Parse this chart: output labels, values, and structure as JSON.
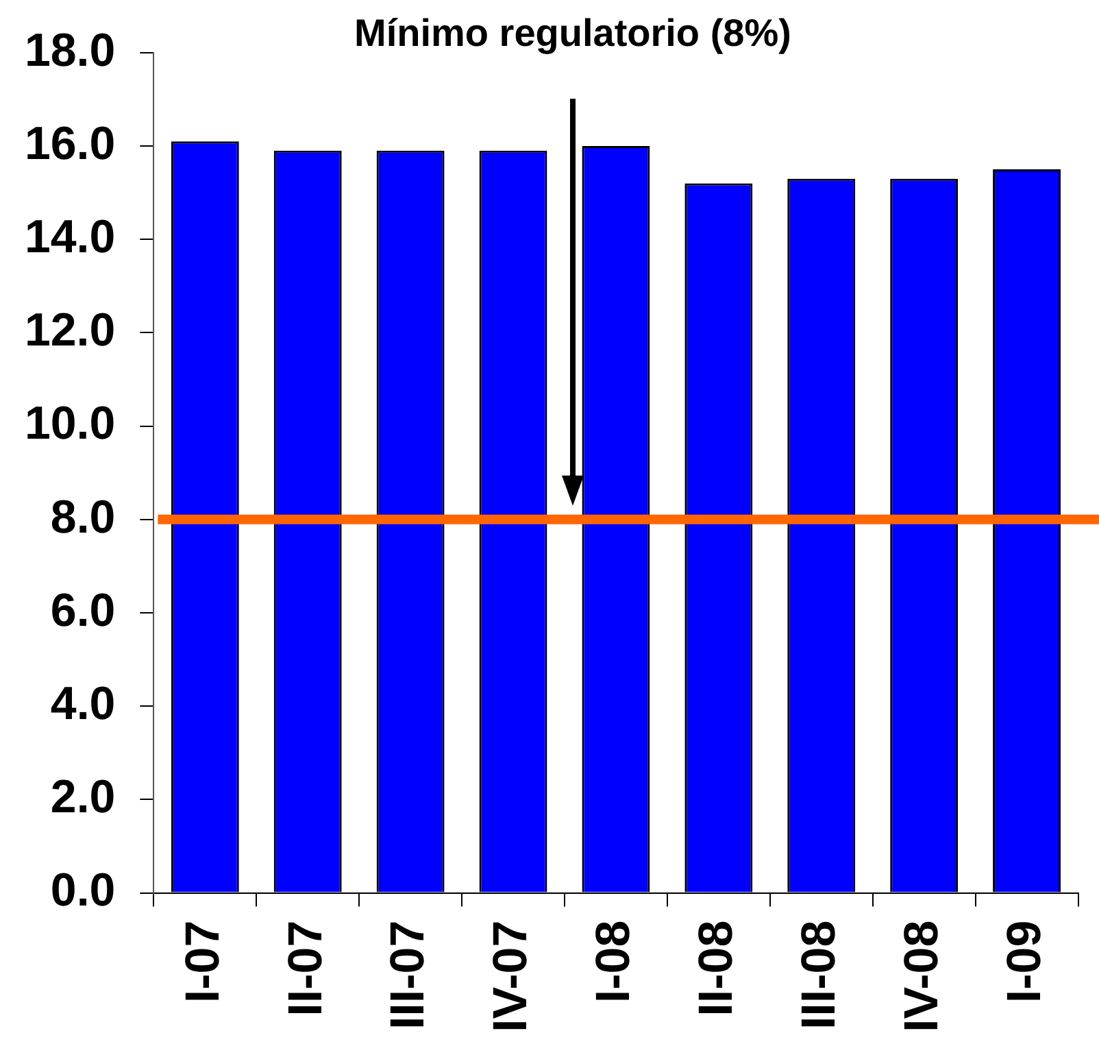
{
  "chart_data": {
    "type": "bar",
    "categories": [
      "I-07",
      "II-07",
      "III-07",
      "IV-07",
      "I-08",
      "II-08",
      "III-08",
      "IV-08",
      "I-09"
    ],
    "values": [
      16.1,
      15.9,
      15.9,
      15.9,
      16.0,
      15.2,
      15.3,
      15.3,
      15.5
    ],
    "color": "#0000ff",
    "ylim": [
      0,
      18
    ],
    "yticks": [
      {
        "value": 0,
        "label": "0.0"
      },
      {
        "value": 2,
        "label": "2.0"
      },
      {
        "value": 4,
        "label": "4.0"
      },
      {
        "value": 6,
        "label": "6.0"
      },
      {
        "value": 8,
        "label": "8.0"
      },
      {
        "value": 10,
        "label": "10.0"
      },
      {
        "value": 12,
        "label": "12.0"
      },
      {
        "value": 14,
        "label": "14.0"
      },
      {
        "value": 16,
        "label": "16.0"
      },
      {
        "value": 18,
        "label": "18.0"
      }
    ],
    "ref_lines": [
      {
        "axis": "y",
        "value": 8,
        "color": "#ff6600"
      }
    ],
    "annotations": [
      "Mínimo regulatorio (8%)"
    ]
  }
}
